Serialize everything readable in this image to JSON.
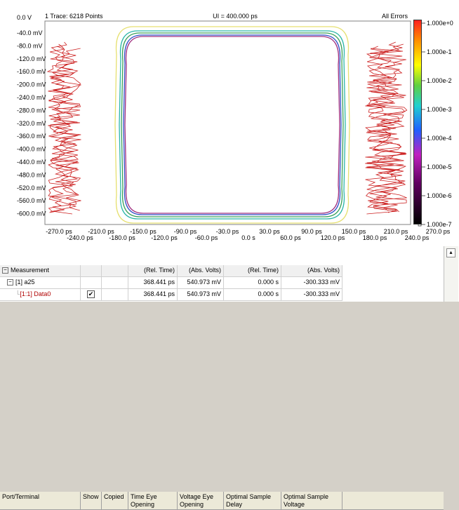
{
  "plot": {
    "y_top_label": "0.0 V",
    "trace_info": "1 Trace: 6218 Points",
    "ui_info": "UI = 400.000 ps",
    "all_errors": "All Errors",
    "y_labels": [
      "-40.0 mV",
      "-80.0 mV",
      "-120.0 mV",
      "-160.0 mV",
      "-200.0 mV",
      "-240.0 mV",
      "-280.0 mV",
      "-320.0 mV",
      "-360.0 mV",
      "-400.0 mV",
      "-440.0 mV",
      "-480.0 mV",
      "-520.0 mV",
      "-560.0 mV",
      "-600.0 mV"
    ],
    "x_labels_upper": [
      "-270.0 ps",
      "-210.0 ps",
      "-150.0 ps",
      "-90.0 ps",
      "-30.0 ps",
      "30.0 ps",
      "90.0 ps",
      "150.0 ps",
      "210.0 ps",
      "270.0 ps"
    ],
    "x_labels_lower": [
      "-240.0 ps",
      "-180.0 ps",
      "-120.0 ps",
      "-60.0 ps",
      "0.0 s",
      "60.0 ps",
      "120.0 ps",
      "180.0 ps",
      "240.0 ps"
    ],
    "colorbar_labels": [
      "1.000e+0",
      "1.000e-1",
      "1.000e-2",
      "1.000e-3",
      "1.000e-4",
      "1.000e-5",
      "1.000e-6",
      "1.000e-7"
    ],
    "contour_colors": [
      "#e6e070",
      "#2ab6a8",
      "#3aa05a",
      "#3050c8",
      "#a03080"
    ],
    "error_color": "#cc2020"
  },
  "table": {
    "headers": [
      "Port/Terminal",
      "Show",
      "Copied",
      "Time Eye Opening",
      "Voltage Eye Opening",
      "Optimal Sample Delay",
      "Optimal Sample Voltage"
    ],
    "rows": [
      {
        "name": "Measurement",
        "show": "",
        "copied": "",
        "t": "(Rel. Time)",
        "v": "(Abs. Volts)",
        "d": "(Rel. Time)",
        "sv": "(Abs. Volts)"
      },
      {
        "name": "[1] a25",
        "show": "",
        "copied": "",
        "t": "368.441 ps",
        "v": "540.973 mV",
        "d": "0.000 s",
        "sv": "-300.333 mV"
      },
      {
        "name": "[1:1] Data0",
        "show": "✔",
        "copied": "",
        "t": "368.441 ps",
        "v": "540.973 mV",
        "d": "0.000 s",
        "sv": "-300.333 mV"
      }
    ]
  }
}
